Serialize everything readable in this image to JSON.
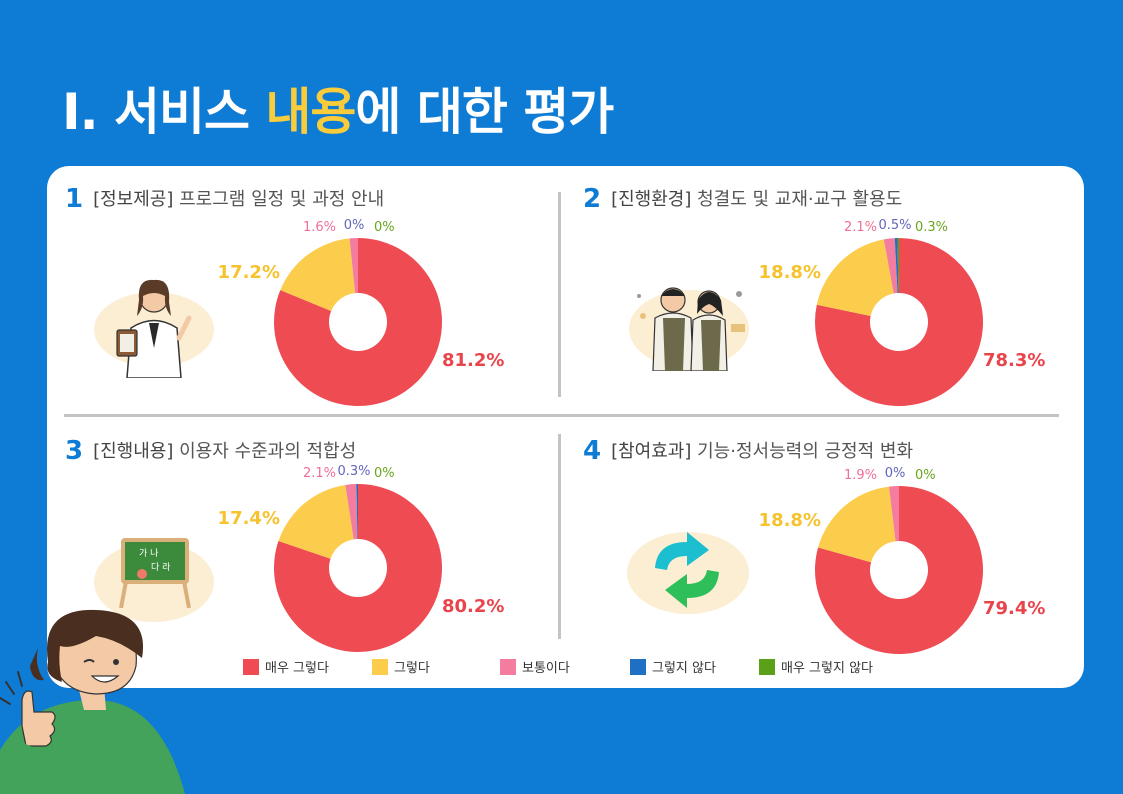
{
  "page": {
    "title_prefix": "Ⅰ. 서비스 ",
    "title_highlight": "내용",
    "title_suffix": "에 대한  평가"
  },
  "legend": {
    "very_agree": "매우 그렇다",
    "agree": "그렇다",
    "neutral": "보통이다",
    "disagree": "그렇지 않다",
    "very_disagree": "매우 그렇지 않다"
  },
  "colors": {
    "very_agree": "#ee4b52",
    "agree": "#fccd4d",
    "neutral": "#f47c9e",
    "disagree": "#1f6fc4",
    "very_disagree": "#5aa019",
    "neutral_label": "#f06f97",
    "disagree_label": "#6366b8",
    "very_disagree_label": "#6aa51f"
  },
  "panels": [
    {
      "num": "1",
      "bracket": "[정보제공]",
      "subtitle": "프로그램 일정 및 과정 안내",
      "icon": "teacher-with-clipboard-icon"
    },
    {
      "num": "2",
      "bracket": "[진행환경]",
      "subtitle": "청결도 및 교재·교구 활용도",
      "icon": "cleaning-staff-icon"
    },
    {
      "num": "3",
      "bracket": "[진행내용]",
      "subtitle": "이용자 수준과의 적합성",
      "icon": "chalkboard-icon"
    },
    {
      "num": "4",
      "bracket": "[참여효과]",
      "subtitle": "기능·정서능력의 긍정적 변화",
      "icon": "refresh-arrows-icon"
    }
  ],
  "chart_data": [
    {
      "type": "pie",
      "donut": true,
      "categories": [
        "매우 그렇다",
        "그렇다",
        "보통이다",
        "그렇지 않다",
        "매우 그렇지 않다"
      ],
      "values": [
        81.2,
        17.2,
        1.6,
        0,
        0
      ],
      "labels": [
        "81.2%",
        "17.2%",
        "1.6%",
        "0%",
        "0%"
      ]
    },
    {
      "type": "pie",
      "donut": true,
      "categories": [
        "매우 그렇다",
        "그렇다",
        "보통이다",
        "그렇지 않다",
        "매우 그렇지 않다"
      ],
      "values": [
        78.3,
        18.8,
        2.1,
        0.5,
        0.3
      ],
      "labels": [
        "78.3%",
        "18.8%",
        "2.1%",
        "0.5%",
        "0.3%"
      ]
    },
    {
      "type": "pie",
      "donut": true,
      "categories": [
        "매우 그렇다",
        "그렇다",
        "보통이다",
        "그렇지 않다",
        "매우 그렇지 않다"
      ],
      "values": [
        80.2,
        17.4,
        2.1,
        0.3,
        0
      ],
      "labels": [
        "80.2%",
        "17.4%",
        "2.1%",
        "0.3%",
        "0%"
      ]
    },
    {
      "type": "pie",
      "donut": true,
      "categories": [
        "매우 그렇다",
        "그렇다",
        "보통이다",
        "그렇지 않다",
        "매우 그렇지 않다"
      ],
      "values": [
        79.4,
        18.8,
        1.9,
        0,
        0
      ],
      "labels": [
        "79.4%",
        "18.8%",
        "1.9%",
        "0%",
        "0%"
      ]
    }
  ]
}
